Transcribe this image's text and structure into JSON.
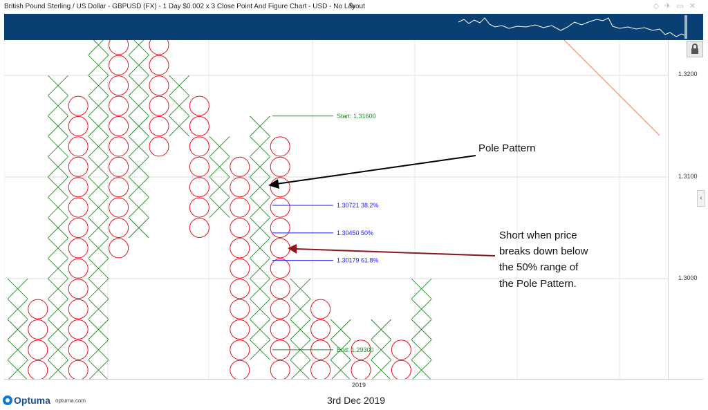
{
  "window": {
    "title": "British Pound Sterling / US Dollar - GBPUSD (FX) - 1 Day $0.002 x 3 Close Point And Figure Chart - USD - No Layout",
    "edit_icon": "pencil-icon",
    "window_icons": [
      "diamond-icon",
      "pin-icon",
      "minimize-icon",
      "close-icon"
    ]
  },
  "branding": {
    "logo": "Optuma",
    "url": "optuma.com",
    "date": "3rd Dec 2019"
  },
  "colors": {
    "nav_background": "#0a3f73",
    "x_color": "#228b22",
    "o_color": "#e8141e",
    "fib_color": "#1a1aff",
    "start_end_color": "#228b22",
    "trendline_color": "#f07b6c",
    "arrow_black": "#000000",
    "arrow_red": "#8b1a1a"
  },
  "chart_data": {
    "type": "point_and_figure",
    "instrument": "GBPUSD",
    "box_size": 0.002,
    "reversal": 3,
    "y_axis": {
      "ticks": [
        "1.3200",
        "1.3100",
        "1.3000"
      ],
      "range": [
        1.29,
        1.323
      ]
    },
    "x_axis": {
      "labels": [
        "2019"
      ]
    },
    "columns": [
      {
        "type": "X",
        "low": 1.291,
        "high": 1.299
      },
      {
        "type": "O",
        "low": 1.291,
        "high": 1.297
      },
      {
        "type": "X",
        "low": 1.291,
        "high": 1.319
      },
      {
        "type": "O",
        "low": 1.291,
        "high": 1.317
      },
      {
        "type": "X",
        "low": 1.291,
        "high": 1.323
      },
      {
        "type": "O",
        "low": 1.303,
        "high": 1.323
      },
      {
        "type": "X",
        "low": 1.305,
        "high": 1.323
      },
      {
        "type": "O",
        "low": 1.313,
        "high": 1.323
      },
      {
        "type": "X",
        "low": 1.315,
        "high": 1.319
      },
      {
        "type": "O",
        "low": 1.305,
        "high": 1.317
      },
      {
        "type": "X",
        "low": 1.307,
        "high": 1.313
      },
      {
        "type": "O",
        "low": 1.291,
        "high": 1.311
      },
      {
        "type": "X",
        "low": 1.293,
        "high": 1.315
      },
      {
        "type": "O",
        "low": 1.291,
        "high": 1.313
      },
      {
        "type": "X",
        "low": 1.291,
        "high": 1.299
      },
      {
        "type": "O",
        "low": 1.291,
        "high": 1.297
      },
      {
        "type": "X",
        "low": 1.291,
        "high": 1.295
      },
      {
        "type": "O",
        "low": 1.291,
        "high": 1.293
      },
      {
        "type": "X",
        "low": 1.291,
        "high": 1.295
      },
      {
        "type": "O",
        "low": 1.291,
        "high": 1.293
      },
      {
        "type": "X",
        "low": 1.291,
        "high": 1.299
      }
    ],
    "fibonacci": {
      "start_label": "Start:",
      "start_value": "1.31600",
      "end_label": "End:",
      "end_value": "1.29300",
      "levels": [
        {
          "value": "1.30721",
          "pct": "38.2%"
        },
        {
          "value": "1.30450",
          "pct": "50%"
        },
        {
          "value": "1.30179",
          "pct": "61.8%"
        }
      ]
    },
    "annotations": {
      "pole": "Pole Pattern",
      "short_lines": [
        "Short when price",
        "breaks down below",
        "the 50% range of",
        "the Pole Pattern."
      ]
    }
  }
}
